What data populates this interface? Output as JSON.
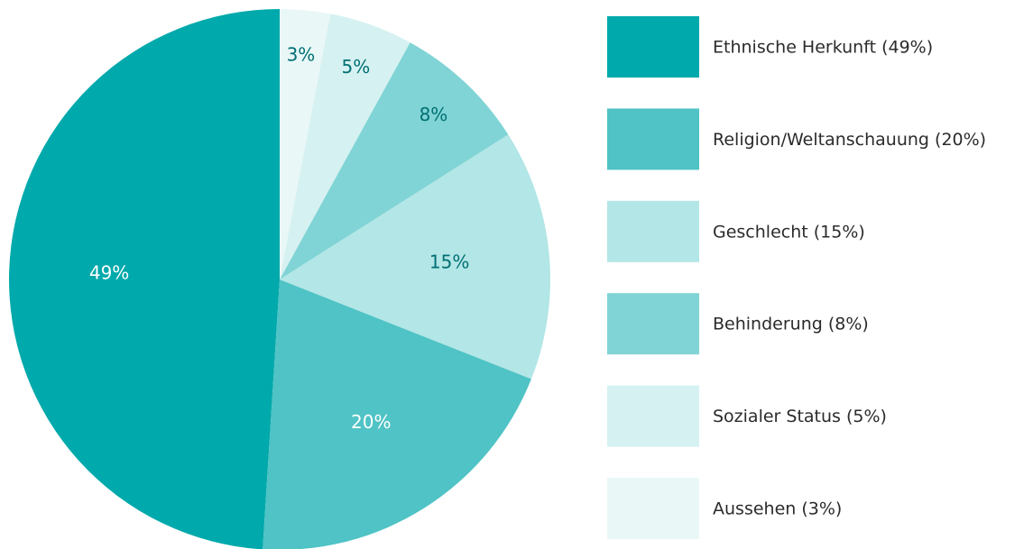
{
  "chart_data": {
    "type": "pie",
    "categories": [
      "Ethnische Herkunft (49%)",
      "Religion/Weltanschauung (20%)",
      "Geschlecht (15%)",
      "Behinderung (8%)",
      "Sozialer Status (5%)",
      "Aussehen (3%)"
    ],
    "values": [
      49,
      20,
      15,
      8,
      5,
      3
    ],
    "value_labels": [
      "49%",
      "20%",
      "15%",
      "8%",
      "5%",
      "3%"
    ],
    "colors": [
      "#00a9ab",
      "#4fc3c5",
      "#b3e6e6",
      "#80d4d5",
      "#d6f1f1",
      "#e9f7f7"
    ],
    "label_colors": [
      "#ffffff",
      "#ffffff",
      "#007073",
      "#007073",
      "#007073",
      "#007073"
    ],
    "legend": "right"
  }
}
